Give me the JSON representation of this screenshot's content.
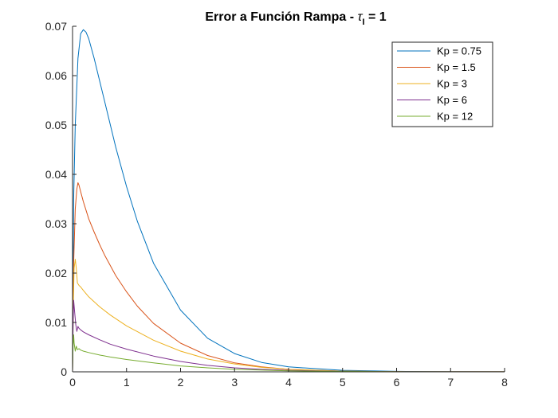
{
  "chart_data": {
    "type": "line",
    "title": "Error a Función Rampa - ",
    "title_symbol": "τ",
    "title_subscript": "I",
    "title_suffix": " = 1",
    "xlim": [
      0,
      8
    ],
    "ylim": [
      0,
      0.07
    ],
    "x_ticks": [
      "0",
      "1",
      "2",
      "3",
      "4",
      "5",
      "6",
      "7",
      "8"
    ],
    "y_ticks": [
      "0",
      "0.01",
      "0.02",
      "0.03",
      "0.04",
      "0.05",
      "0.06",
      "0.07"
    ],
    "grid": false,
    "legend_position": "top-right",
    "series": [
      {
        "name": "Kp = 0.75",
        "color": "#0072BD",
        "x": [
          0,
          0.02,
          0.05,
          0.1,
          0.15,
          0.2,
          0.25,
          0.3,
          0.4,
          0.5,
          0.6,
          0.8,
          1.0,
          1.2,
          1.5,
          2.0,
          2.5,
          3.0,
          3.5,
          4.0,
          5.0,
          6.0,
          7.0,
          8.0
        ],
        "y": [
          0,
          0.035,
          0.05,
          0.0635,
          0.0685,
          0.0693,
          0.0688,
          0.0675,
          0.0635,
          0.059,
          0.0545,
          0.0455,
          0.0375,
          0.0305,
          0.022,
          0.0125,
          0.0068,
          0.0037,
          0.0019,
          0.001,
          0.0003,
          0.0001,
          3e-05,
          1e-05
        ]
      },
      {
        "name": "Kp = 1.5",
        "color": "#D95319",
        "x": [
          0,
          0.02,
          0.05,
          0.08,
          0.1,
          0.12,
          0.15,
          0.2,
          0.3,
          0.4,
          0.5,
          0.6,
          0.8,
          1.0,
          1.2,
          1.5,
          2.0,
          2.5,
          3.0,
          3.5,
          4.0,
          5.0,
          6.0,
          7.0,
          8.0
        ],
        "y": [
          0,
          0.022,
          0.033,
          0.037,
          0.0383,
          0.0378,
          0.0365,
          0.0345,
          0.031,
          0.0283,
          0.0258,
          0.0235,
          0.0195,
          0.0162,
          0.0133,
          0.0098,
          0.0058,
          0.0033,
          0.0018,
          0.001,
          0.0005,
          0.00015,
          4e-05,
          1e-05,
          1e-05
        ]
      },
      {
        "name": "Kp = 3",
        "color": "#EDB120",
        "x": [
          0,
          0.01,
          0.03,
          0.05,
          0.07,
          0.09,
          0.12,
          0.15,
          0.2,
          0.3,
          0.5,
          0.7,
          1.0,
          1.5,
          2.0,
          2.5,
          3.0,
          3.5,
          4.0,
          5.0,
          6.0,
          7.0,
          8.0
        ],
        "y": [
          0,
          0.012,
          0.021,
          0.0228,
          0.021,
          0.018,
          0.0175,
          0.0172,
          0.0165,
          0.0152,
          0.0132,
          0.0115,
          0.0093,
          0.0064,
          0.0042,
          0.0026,
          0.0016,
          0.0009,
          0.0005,
          0.00015,
          4e-05,
          1e-05,
          1e-05
        ]
      },
      {
        "name": "Kp = 6",
        "color": "#7E2F8E",
        "x": [
          0,
          0.01,
          0.02,
          0.04,
          0.06,
          0.08,
          0.1,
          0.12,
          0.15,
          0.2,
          0.3,
          0.5,
          0.7,
          1.0,
          1.5,
          2.0,
          2.5,
          3.0,
          3.5,
          4.0,
          5.0,
          6.0,
          7.0,
          8.0
        ],
        "y": [
          0,
          0.0095,
          0.0145,
          0.012,
          0.0095,
          0.0082,
          0.0092,
          0.0088,
          0.0085,
          0.0081,
          0.0075,
          0.0065,
          0.0056,
          0.0046,
          0.0032,
          0.0021,
          0.0013,
          0.0008,
          0.0005,
          0.0003,
          0.0001,
          3e-05,
          1e-05,
          1e-05
        ]
      },
      {
        "name": "Kp = 12",
        "color": "#77AC30",
        "x": [
          0,
          0.01,
          0.02,
          0.03,
          0.05,
          0.07,
          0.09,
          0.12,
          0.15,
          0.2,
          0.3,
          0.5,
          0.7,
          1.0,
          1.5,
          2.0,
          2.5,
          3.0,
          4.0,
          5.0,
          6.0,
          7.0,
          8.0
        ],
        "y": [
          0,
          0.0055,
          0.0075,
          0.0058,
          0.0042,
          0.0052,
          0.0045,
          0.0047,
          0.0044,
          0.0042,
          0.0039,
          0.0034,
          0.003,
          0.0025,
          0.0018,
          0.0012,
          0.0008,
          0.0005,
          0.0002,
          0.0001,
          3e-05,
          1e-05,
          1e-05
        ]
      }
    ]
  }
}
